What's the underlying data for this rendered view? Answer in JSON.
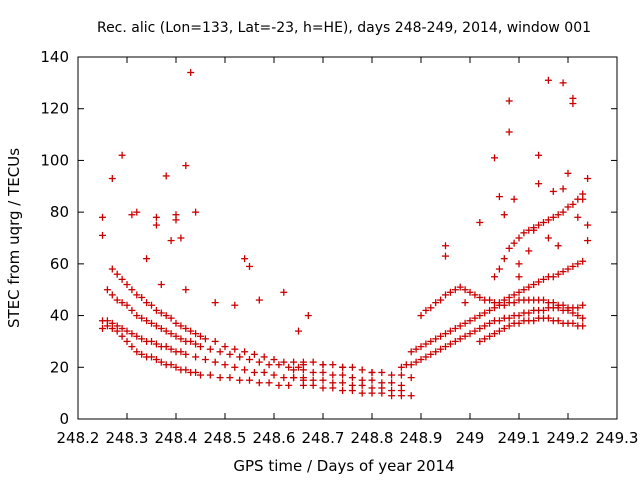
{
  "chart_data": {
    "type": "scatter",
    "title": "Rec. alic (Lon=133, Lat=-23, h=HE), days 248-249, 2014, window 001",
    "xlabel": "GPS time / Days of year 2014",
    "ylabel": "STEC from uqrg / TECUs",
    "xlim": [
      248.2,
      249.3
    ],
    "ylim": [
      0,
      140
    ],
    "xticks": [
      248.2,
      248.3,
      248.4,
      248.5,
      248.6,
      248.7,
      248.8,
      248.9,
      249,
      249.1,
      249.2,
      249.3
    ],
    "xtick_labels": [
      "248.2",
      "248.3",
      "248.4",
      "248.5",
      "248.6",
      "248.7",
      "248.8",
      "248.9",
      "249",
      "249.1",
      "249.2",
      "249.3"
    ],
    "yticks": [
      0,
      20,
      40,
      60,
      80,
      100,
      120,
      140
    ],
    "ytick_labels": [
      "0",
      "20",
      "40",
      "60",
      "80",
      "100",
      "120",
      "140"
    ],
    "grid": false,
    "legend": "none",
    "marker": "plus",
    "color": "#cc0000",
    "points": [
      [
        248.25,
        35
      ],
      [
        248.26,
        36
      ],
      [
        248.27,
        35
      ],
      [
        248.28,
        34
      ],
      [
        248.29,
        32
      ],
      [
        248.3,
        30
      ],
      [
        248.31,
        28
      ],
      [
        248.32,
        26
      ],
      [
        248.33,
        25
      ],
      [
        248.34,
        24
      ],
      [
        248.35,
        24
      ],
      [
        248.36,
        23
      ],
      [
        248.37,
        22
      ],
      [
        248.38,
        21
      ],
      [
        248.39,
        21
      ],
      [
        248.4,
        20
      ],
      [
        248.41,
        19
      ],
      [
        248.42,
        19
      ],
      [
        248.43,
        18
      ],
      [
        248.44,
        18
      ],
      [
        248.45,
        17
      ],
      [
        248.47,
        17
      ],
      [
        248.49,
        16
      ],
      [
        248.51,
        16
      ],
      [
        248.53,
        15
      ],
      [
        248.55,
        15
      ],
      [
        248.57,
        14
      ],
      [
        248.59,
        14
      ],
      [
        248.61,
        13
      ],
      [
        248.63,
        13
      ],
      [
        248.25,
        38
      ],
      [
        248.26,
        38
      ],
      [
        248.27,
        37
      ],
      [
        248.28,
        36
      ],
      [
        248.29,
        35
      ],
      [
        248.3,
        34
      ],
      [
        248.31,
        33
      ],
      [
        248.32,
        32
      ],
      [
        248.33,
        31
      ],
      [
        248.34,
        30
      ],
      [
        248.35,
        30
      ],
      [
        248.36,
        29
      ],
      [
        248.37,
        28
      ],
      [
        248.38,
        28
      ],
      [
        248.39,
        27
      ],
      [
        248.4,
        26
      ],
      [
        248.41,
        26
      ],
      [
        248.42,
        25
      ],
      [
        248.44,
        24
      ],
      [
        248.46,
        23
      ],
      [
        248.48,
        22
      ],
      [
        248.5,
        21
      ],
      [
        248.52,
        20
      ],
      [
        248.54,
        19
      ],
      [
        248.56,
        18
      ],
      [
        248.58,
        18
      ],
      [
        248.6,
        17
      ],
      [
        248.62,
        16
      ],
      [
        248.64,
        16
      ],
      [
        248.66,
        15
      ],
      [
        248.26,
        50
      ],
      [
        248.27,
        48
      ],
      [
        248.28,
        46
      ],
      [
        248.29,
        45
      ],
      [
        248.3,
        44
      ],
      [
        248.31,
        42
      ],
      [
        248.32,
        40
      ],
      [
        248.33,
        39
      ],
      [
        248.34,
        38
      ],
      [
        248.35,
        37
      ],
      [
        248.36,
        36
      ],
      [
        248.37,
        35
      ],
      [
        248.38,
        34
      ],
      [
        248.39,
        33
      ],
      [
        248.4,
        32
      ],
      [
        248.41,
        31
      ],
      [
        248.42,
        30
      ],
      [
        248.43,
        30
      ],
      [
        248.44,
        29
      ],
      [
        248.45,
        28
      ],
      [
        248.47,
        27
      ],
      [
        248.49,
        26
      ],
      [
        248.51,
        25
      ],
      [
        248.53,
        24
      ],
      [
        248.55,
        23
      ],
      [
        248.57,
        22
      ],
      [
        248.59,
        21
      ],
      [
        248.61,
        21
      ],
      [
        248.63,
        20
      ],
      [
        248.65,
        20
      ],
      [
        248.27,
        58
      ],
      [
        248.28,
        56
      ],
      [
        248.29,
        54
      ],
      [
        248.3,
        52
      ],
      [
        248.31,
        50
      ],
      [
        248.32,
        48
      ],
      [
        248.33,
        47
      ],
      [
        248.34,
        45
      ],
      [
        248.35,
        44
      ],
      [
        248.36,
        42
      ],
      [
        248.37,
        41
      ],
      [
        248.38,
        40
      ],
      [
        248.39,
        39
      ],
      [
        248.4,
        37
      ],
      [
        248.41,
        36
      ],
      [
        248.42,
        35
      ],
      [
        248.43,
        34
      ],
      [
        248.44,
        33
      ],
      [
        248.45,
        32
      ],
      [
        248.46,
        31
      ],
      [
        248.48,
        30
      ],
      [
        248.5,
        28
      ],
      [
        248.52,
        27
      ],
      [
        248.54,
        26
      ],
      [
        248.56,
        25
      ],
      [
        248.58,
        24
      ],
      [
        248.6,
        23
      ],
      [
        248.62,
        22
      ],
      [
        248.64,
        22
      ],
      [
        248.66,
        21
      ],
      [
        248.64,
        19
      ],
      [
        248.66,
        19
      ],
      [
        248.68,
        18
      ],
      [
        248.7,
        18
      ],
      [
        248.72,
        17
      ],
      [
        248.74,
        17
      ],
      [
        248.76,
        16
      ],
      [
        248.78,
        15
      ],
      [
        248.8,
        15
      ],
      [
        248.82,
        14
      ],
      [
        248.84,
        14
      ],
      [
        248.86,
        13
      ],
      [
        248.64,
        16
      ],
      [
        248.66,
        16
      ],
      [
        248.68,
        15
      ],
      [
        248.7,
        15
      ],
      [
        248.72,
        14
      ],
      [
        248.74,
        14
      ],
      [
        248.76,
        13
      ],
      [
        248.78,
        13
      ],
      [
        248.8,
        12
      ],
      [
        248.82,
        12
      ],
      [
        248.84,
        11
      ],
      [
        248.86,
        11
      ],
      [
        248.66,
        13
      ],
      [
        248.68,
        13
      ],
      [
        248.7,
        12
      ],
      [
        248.72,
        12
      ],
      [
        248.74,
        11
      ],
      [
        248.76,
        11
      ],
      [
        248.78,
        10
      ],
      [
        248.8,
        10
      ],
      [
        248.82,
        10
      ],
      [
        248.84,
        9
      ],
      [
        248.86,
        9
      ],
      [
        248.88,
        9
      ],
      [
        248.66,
        22
      ],
      [
        248.68,
        22
      ],
      [
        248.7,
        21
      ],
      [
        248.72,
        21
      ],
      [
        248.74,
        20
      ],
      [
        248.76,
        20
      ],
      [
        248.78,
        19
      ],
      [
        248.8,
        18
      ],
      [
        248.82,
        18
      ],
      [
        248.84,
        17
      ],
      [
        248.86,
        17
      ],
      [
        248.88,
        16
      ],
      [
        248.86,
        20
      ],
      [
        248.87,
        21
      ],
      [
        248.88,
        21
      ],
      [
        248.89,
        22
      ],
      [
        248.9,
        23
      ],
      [
        248.91,
        24
      ],
      [
        248.92,
        25
      ],
      [
        248.93,
        26
      ],
      [
        248.94,
        27
      ],
      [
        248.95,
        28
      ],
      [
        248.96,
        29
      ],
      [
        248.97,
        30
      ],
      [
        248.98,
        31
      ],
      [
        248.99,
        32
      ],
      [
        249.0,
        33
      ],
      [
        249.01,
        34
      ],
      [
        249.02,
        35
      ],
      [
        249.03,
        36
      ],
      [
        249.04,
        37
      ],
      [
        249.05,
        38
      ],
      [
        249.06,
        38
      ],
      [
        249.07,
        39
      ],
      [
        249.08,
        39
      ],
      [
        249.09,
        40
      ],
      [
        249.1,
        40
      ],
      [
        249.11,
        41
      ],
      [
        249.12,
        41
      ],
      [
        249.13,
        42
      ],
      [
        249.14,
        42
      ],
      [
        249.15,
        42
      ],
      [
        249.16,
        43
      ],
      [
        249.17,
        43
      ],
      [
        249.18,
        43
      ],
      [
        249.19,
        42
      ],
      [
        249.2,
        42
      ],
      [
        249.21,
        41
      ],
      [
        249.22,
        40
      ],
      [
        249.23,
        39
      ],
      [
        248.88,
        26
      ],
      [
        248.89,
        27
      ],
      [
        248.9,
        28
      ],
      [
        248.91,
        29
      ],
      [
        248.92,
        30
      ],
      [
        248.93,
        31
      ],
      [
        248.94,
        32
      ],
      [
        248.95,
        33
      ],
      [
        248.96,
        34
      ],
      [
        248.97,
        35
      ],
      [
        248.98,
        36
      ],
      [
        248.99,
        37
      ],
      [
        249.0,
        38
      ],
      [
        249.01,
        39
      ],
      [
        249.02,
        40
      ],
      [
        249.03,
        41
      ],
      [
        249.04,
        42
      ],
      [
        249.05,
        43
      ],
      [
        249.06,
        44
      ],
      [
        249.07,
        44
      ],
      [
        249.08,
        45
      ],
      [
        249.09,
        45
      ],
      [
        249.1,
        46
      ],
      [
        249.11,
        46
      ],
      [
        249.12,
        46
      ],
      [
        249.13,
        46
      ],
      [
        249.14,
        46
      ],
      [
        249.15,
        46
      ],
      [
        249.16,
        45
      ],
      [
        249.17,
        45
      ],
      [
        249.18,
        44
      ],
      [
        249.19,
        44
      ],
      [
        249.2,
        43
      ],
      [
        249.21,
        43
      ],
      [
        249.22,
        43
      ],
      [
        249.23,
        44
      ],
      [
        248.9,
        40
      ],
      [
        248.91,
        42
      ],
      [
        248.92,
        43
      ],
      [
        248.93,
        45
      ],
      [
        248.94,
        46
      ],
      [
        248.95,
        48
      ],
      [
        248.96,
        49
      ],
      [
        248.97,
        50
      ],
      [
        248.98,
        51
      ],
      [
        248.99,
        50
      ],
      [
        249.0,
        49
      ],
      [
        249.01,
        48
      ],
      [
        249.02,
        47
      ],
      [
        249.03,
        46
      ],
      [
        249.04,
        46
      ],
      [
        249.05,
        45
      ],
      [
        249.06,
        45
      ],
      [
        249.07,
        46
      ],
      [
        249.08,
        47
      ],
      [
        249.09,
        48
      ],
      [
        249.1,
        49
      ],
      [
        249.11,
        50
      ],
      [
        249.12,
        51
      ],
      [
        249.13,
        52
      ],
      [
        249.14,
        53
      ],
      [
        249.15,
        54
      ],
      [
        249.16,
        55
      ],
      [
        249.17,
        55
      ],
      [
        249.18,
        56
      ],
      [
        249.19,
        57
      ],
      [
        249.2,
        58
      ],
      [
        249.21,
        59
      ],
      [
        249.22,
        60
      ],
      [
        249.23,
        61
      ],
      [
        249.05,
        55
      ],
      [
        249.06,
        58
      ],
      [
        249.07,
        62
      ],
      [
        249.08,
        66
      ],
      [
        249.09,
        68
      ],
      [
        249.1,
        70
      ],
      [
        249.11,
        72
      ],
      [
        249.12,
        73
      ],
      [
        249.13,
        74
      ],
      [
        249.14,
        75
      ],
      [
        249.15,
        76
      ],
      [
        249.16,
        77
      ],
      [
        249.17,
        78
      ],
      [
        249.18,
        79
      ],
      [
        249.19,
        80
      ],
      [
        249.2,
        82
      ],
      [
        249.21,
        83
      ],
      [
        249.22,
        85
      ],
      [
        249.23,
        87
      ],
      [
        249.02,
        30
      ],
      [
        249.03,
        31
      ],
      [
        249.04,
        32
      ],
      [
        249.05,
        33
      ],
      [
        249.06,
        34
      ],
      [
        249.07,
        35
      ],
      [
        249.08,
        36
      ],
      [
        249.09,
        37
      ],
      [
        249.1,
        37
      ],
      [
        249.11,
        38
      ],
      [
        249.12,
        38
      ],
      [
        249.13,
        38
      ],
      [
        249.14,
        39
      ],
      [
        249.15,
        39
      ],
      [
        249.16,
        39
      ],
      [
        249.17,
        38
      ],
      [
        249.18,
        38
      ],
      [
        249.19,
        37
      ],
      [
        249.2,
        37
      ],
      [
        249.21,
        37
      ],
      [
        249.22,
        36
      ],
      [
        249.23,
        36
      ],
      [
        248.25,
        78
      ],
      [
        248.25,
        71
      ],
      [
        248.27,
        93
      ],
      [
        248.29,
        102
      ],
      [
        248.31,
        79
      ],
      [
        248.32,
        80
      ],
      [
        248.36,
        78
      ],
      [
        248.36,
        75
      ],
      [
        248.38,
        94
      ],
      [
        248.4,
        79
      ],
      [
        248.4,
        77
      ],
      [
        248.42,
        98
      ],
      [
        248.43,
        134
      ],
      [
        248.44,
        80
      ],
      [
        248.39,
        69
      ],
      [
        248.41,
        70
      ],
      [
        248.34,
        62
      ],
      [
        248.37,
        52
      ],
      [
        248.42,
        50
      ],
      [
        248.48,
        45
      ],
      [
        248.52,
        44
      ],
      [
        248.54,
        62
      ],
      [
        248.55,
        59
      ],
      [
        248.57,
        46
      ],
      [
        248.62,
        49
      ],
      [
        248.65,
        34
      ],
      [
        248.67,
        40
      ],
      [
        248.7,
        21
      ],
      [
        248.74,
        20
      ],
      [
        248.8,
        18
      ],
      [
        248.95,
        67
      ],
      [
        248.95,
        63
      ],
      [
        248.99,
        45
      ],
      [
        249.02,
        76
      ],
      [
        249.05,
        101
      ],
      [
        249.06,
        86
      ],
      [
        249.07,
        79
      ],
      [
        249.08,
        123
      ],
      [
        249.08,
        111
      ],
      [
        249.09,
        85
      ],
      [
        249.1,
        60
      ],
      [
        249.13,
        73
      ],
      [
        249.14,
        102
      ],
      [
        249.14,
        91
      ],
      [
        249.16,
        131
      ],
      [
        249.17,
        88
      ],
      [
        249.19,
        130
      ],
      [
        249.19,
        89
      ],
      [
        249.21,
        124
      ],
      [
        249.21,
        122
      ],
      [
        249.22,
        78
      ],
      [
        249.23,
        85
      ],
      [
        249.24,
        93
      ],
      [
        249.24,
        75
      ],
      [
        249.24,
        69
      ],
      [
        249.1,
        55
      ],
      [
        249.12,
        65
      ],
      [
        249.16,
        70
      ],
      [
        249.18,
        67
      ],
      [
        249.2,
        95
      ]
    ]
  }
}
